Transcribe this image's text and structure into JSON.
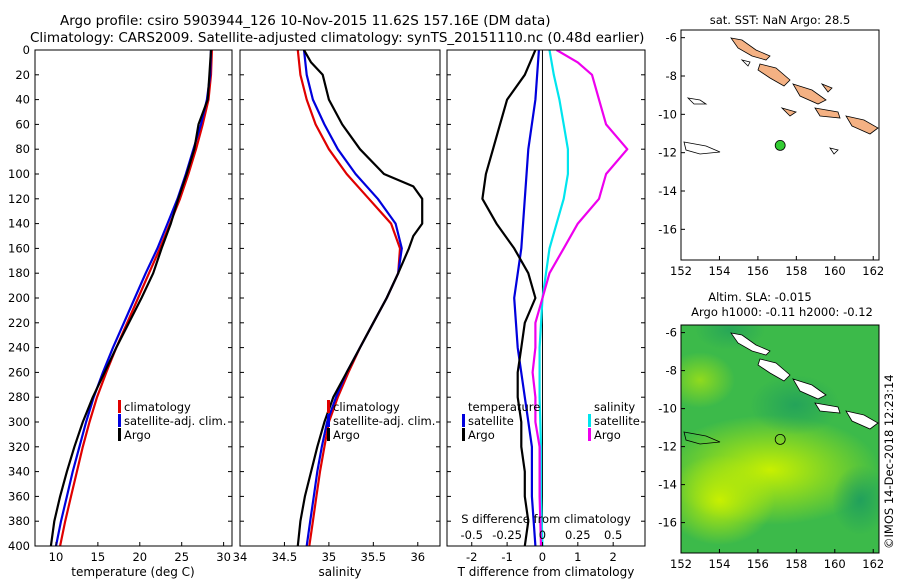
{
  "header": {
    "line1": "Argo profile: csiro 5903944_126 10-Nov-2015 11.62S 157.16E (DM data)",
    "line2": "Climatology: CARS2009. Satellite-adjusted climatology: synTS_20151110.nc (0.48d earlier)"
  },
  "colors": {
    "climatology": "#e00000",
    "satellite": "#0000dd",
    "argo": "#000000",
    "s_satellite": "#00e5ee",
    "s_climatology": "#ee00ee",
    "land": "#f4b183",
    "float": "#33cc33"
  },
  "depth_axis": {
    "min": 0,
    "max": 400,
    "ticks": [
      0,
      20,
      40,
      60,
      80,
      100,
      120,
      140,
      160,
      180,
      200,
      220,
      240,
      260,
      280,
      300,
      320,
      340,
      360,
      380,
      400
    ]
  },
  "chart_data": [
    {
      "id": "temperature",
      "type": "line",
      "xlabel": "temperature (deg C)",
      "xlim": [
        7.5,
        31
      ],
      "xticks": [
        10,
        15,
        20,
        25,
        30
      ],
      "legend": [
        "climatology",
        "satellite-adj. clim.",
        "Argo"
      ],
      "series": [
        {
          "name": "climatology",
          "color_key": "climatology",
          "points": [
            [
              28.6,
              0
            ],
            [
              28.5,
              20
            ],
            [
              28.2,
              40
            ],
            [
              27.5,
              60
            ],
            [
              26.7,
              80
            ],
            [
              25.8,
              100
            ],
            [
              24.8,
              120
            ],
            [
              23.6,
              140
            ],
            [
              22.4,
              160
            ],
            [
              21.1,
              180
            ],
            [
              19.8,
              200
            ],
            [
              18.5,
              220
            ],
            [
              17.2,
              240
            ],
            [
              16.0,
              260
            ],
            [
              14.9,
              280
            ],
            [
              14.0,
              300
            ],
            [
              13.2,
              320
            ],
            [
              12.5,
              340
            ],
            [
              11.8,
              360
            ],
            [
              11.1,
              380
            ],
            [
              10.5,
              400
            ]
          ]
        },
        {
          "name": "satellite-adj. clim.",
          "color_key": "satellite",
          "points": [
            [
              28.5,
              0
            ],
            [
              28.4,
              20
            ],
            [
              28.0,
              40
            ],
            [
              27.3,
              60
            ],
            [
              26.4,
              80
            ],
            [
              25.5,
              100
            ],
            [
              24.5,
              120
            ],
            [
              23.3,
              140
            ],
            [
              22.1,
              160
            ],
            [
              20.7,
              180
            ],
            [
              19.4,
              200
            ],
            [
              18.1,
              220
            ],
            [
              16.8,
              240
            ],
            [
              15.6,
              260
            ],
            [
              14.5,
              280
            ],
            [
              13.6,
              300
            ],
            [
              12.8,
              320
            ],
            [
              12.0,
              340
            ],
            [
              11.3,
              360
            ],
            [
              10.6,
              380
            ],
            [
              10.0,
              400
            ]
          ]
        },
        {
          "name": "Argo",
          "color_key": "argo",
          "points": [
            [
              28.5,
              0
            ],
            [
              28.3,
              20
            ],
            [
              28.1,
              40
            ],
            [
              27.0,
              60
            ],
            [
              26.5,
              80
            ],
            [
              25.6,
              100
            ],
            [
              24.6,
              120
            ],
            [
              23.7,
              140
            ],
            [
              22.6,
              160
            ],
            [
              21.6,
              180
            ],
            [
              20.2,
              200
            ],
            [
              18.7,
              220
            ],
            [
              17.2,
              240
            ],
            [
              15.8,
              260
            ],
            [
              14.4,
              280
            ],
            [
              13.2,
              300
            ],
            [
              12.2,
              320
            ],
            [
              11.3,
              340
            ],
            [
              10.5,
              360
            ],
            [
              9.8,
              380
            ],
            [
              9.4,
              400
            ]
          ]
        }
      ]
    },
    {
      "id": "salinity",
      "type": "line",
      "xlabel": "salinity",
      "xlim": [
        34,
        36.25
      ],
      "xticks": [
        34,
        34.5,
        35,
        35.5,
        36
      ],
      "xtick_labels": [
        "34",
        "34.5",
        "35",
        "35.5",
        "36"
      ],
      "legend": [
        "climatology",
        "satellite-adj. clim.",
        "Argo"
      ],
      "series": [
        {
          "name": "climatology",
          "color_key": "climatology",
          "points": [
            [
              34.65,
              0
            ],
            [
              34.68,
              20
            ],
            [
              34.75,
              40
            ],
            [
              34.85,
              60
            ],
            [
              35.0,
              80
            ],
            [
              35.2,
              100
            ],
            [
              35.45,
              120
            ],
            [
              35.7,
              140
            ],
            [
              35.8,
              160
            ],
            [
              35.78,
              180
            ],
            [
              35.65,
              200
            ],
            [
              35.5,
              220
            ],
            [
              35.35,
              240
            ],
            [
              35.22,
              260
            ],
            [
              35.1,
              280
            ],
            [
              35.0,
              300
            ],
            [
              34.95,
              320
            ],
            [
              34.9,
              340
            ],
            [
              34.86,
              360
            ],
            [
              34.82,
              380
            ],
            [
              34.78,
              400
            ]
          ]
        },
        {
          "name": "satellite-adj. clim.",
          "color_key": "satellite",
          "points": [
            [
              34.72,
              0
            ],
            [
              34.75,
              20
            ],
            [
              34.82,
              40
            ],
            [
              34.95,
              60
            ],
            [
              35.1,
              80
            ],
            [
              35.3,
              100
            ],
            [
              35.55,
              120
            ],
            [
              35.75,
              140
            ],
            [
              35.82,
              160
            ],
            [
              35.78,
              180
            ],
            [
              35.65,
              200
            ],
            [
              35.5,
              220
            ],
            [
              35.35,
              240
            ],
            [
              35.2,
              260
            ],
            [
              35.08,
              280
            ],
            [
              34.98,
              300
            ],
            [
              34.92,
              320
            ],
            [
              34.87,
              340
            ],
            [
              34.83,
              360
            ],
            [
              34.79,
              380
            ],
            [
              34.75,
              400
            ]
          ]
        },
        {
          "name": "Argo",
          "color_key": "argo",
          "points": [
            [
              34.72,
              0
            ],
            [
              34.8,
              10
            ],
            [
              34.93,
              20
            ],
            [
              35.0,
              40
            ],
            [
              35.15,
              60
            ],
            [
              35.35,
              80
            ],
            [
              35.62,
              100
            ],
            [
              35.95,
              110
            ],
            [
              36.05,
              120
            ],
            [
              36.05,
              140
            ],
            [
              35.95,
              150
            ],
            [
              35.9,
              160
            ],
            [
              35.78,
              180
            ],
            [
              35.65,
              200
            ],
            [
              35.5,
              220
            ],
            [
              35.35,
              240
            ],
            [
              35.2,
              260
            ],
            [
              35.05,
              280
            ],
            [
              34.95,
              300
            ],
            [
              34.87,
              320
            ],
            [
              34.8,
              340
            ],
            [
              34.73,
              360
            ],
            [
              34.68,
              380
            ],
            [
              34.65,
              400
            ]
          ]
        }
      ]
    },
    {
      "id": "difference",
      "type": "line",
      "xlabel": "T difference from climatology",
      "xlim": [
        -2.7,
        2.9
      ],
      "xticks": [
        -2,
        -1,
        0,
        1,
        2
      ],
      "top_label": "S difference from climatology",
      "top_ticks": [
        "-0.5",
        "-0.25",
        "0",
        "0.25",
        "0.5"
      ],
      "top_tick_values": [
        -0.5,
        -0.25,
        0,
        0.25,
        0.5
      ],
      "legend_left_title": "temperature",
      "legend_right_title": "salinity",
      "legend_left": [
        "satellite",
        "Argo"
      ],
      "legend_right": [
        "satellite",
        "Argo"
      ],
      "series": [
        {
          "name": "T satellite",
          "color_key": "satellite",
          "scale": "T",
          "points": [
            [
              -0.1,
              0
            ],
            [
              -0.2,
              40
            ],
            [
              -0.4,
              80
            ],
            [
              -0.5,
              120
            ],
            [
              -0.6,
              160
            ],
            [
              -0.8,
              200
            ],
            [
              -0.7,
              240
            ],
            [
              -0.5,
              280
            ],
            [
              -0.3,
              320
            ],
            [
              -0.3,
              360
            ],
            [
              -0.2,
              400
            ]
          ]
        },
        {
          "name": "T Argo",
          "color_key": "argo",
          "scale": "T",
          "points": [
            [
              -0.2,
              0
            ],
            [
              -0.5,
              20
            ],
            [
              -1.0,
              40
            ],
            [
              -1.2,
              60
            ],
            [
              -1.4,
              80
            ],
            [
              -1.6,
              100
            ],
            [
              -1.7,
              120
            ],
            [
              -1.3,
              140
            ],
            [
              -0.8,
              160
            ],
            [
              -0.4,
              180
            ],
            [
              -0.2,
              200
            ],
            [
              -0.5,
              220
            ],
            [
              -0.6,
              240
            ],
            [
              -0.7,
              260
            ],
            [
              -0.7,
              280
            ],
            [
              -0.6,
              300
            ],
            [
              -0.6,
              320
            ],
            [
              -0.5,
              340
            ],
            [
              -0.5,
              360
            ],
            [
              -0.4,
              380
            ],
            [
              -0.5,
              400
            ]
          ]
        },
        {
          "name": "S satellite",
          "color_key": "s_satellite",
          "scale": "S",
          "points": [
            [
              0.05,
              0
            ],
            [
              0.08,
              20
            ],
            [
              0.12,
              40
            ],
            [
              0.15,
              60
            ],
            [
              0.18,
              80
            ],
            [
              0.18,
              100
            ],
            [
              0.15,
              120
            ],
            [
              0.1,
              140
            ],
            [
              0.05,
              160
            ],
            [
              0.0,
              200
            ],
            [
              -0.02,
              240
            ],
            [
              -0.02,
              280
            ],
            [
              -0.01,
              320
            ],
            [
              -0.01,
              360
            ],
            [
              0.0,
              400
            ]
          ]
        },
        {
          "name": "S Argo",
          "color_key": "s_climatology",
          "scale": "S",
          "points": [
            [
              0.1,
              0
            ],
            [
              0.25,
              10
            ],
            [
              0.35,
              20
            ],
            [
              0.4,
              40
            ],
            [
              0.45,
              60
            ],
            [
              0.6,
              80
            ],
            [
              0.45,
              100
            ],
            [
              0.4,
              120
            ],
            [
              0.25,
              140
            ],
            [
              0.15,
              160
            ],
            [
              0.05,
              180
            ],
            [
              0.0,
              200
            ],
            [
              -0.05,
              220
            ],
            [
              -0.05,
              240
            ],
            [
              -0.07,
              260
            ],
            [
              -0.05,
              280
            ],
            [
              -0.05,
              300
            ],
            [
              -0.02,
              320
            ],
            [
              -0.02,
              360
            ],
            [
              -0.01,
              400
            ]
          ]
        }
      ]
    }
  ],
  "maps": [
    {
      "id": "sst-map",
      "title": "sat. SST: NaN Argo: 28.5",
      "lon_ticks": [
        152,
        154,
        156,
        158,
        160,
        162
      ],
      "lat_ticks": [
        -6,
        -8,
        -10,
        -12,
        -14,
        -16
      ],
      "lon_range": [
        152,
        162.3
      ],
      "lat_range": [
        -5.6,
        -17.6
      ],
      "float_lon": 157.16,
      "float_lat": -11.62
    },
    {
      "id": "sla-map",
      "title": "Altim. SLA: -0.015",
      "subtitle": "Argo h1000: -0.11 h2000: -0.12",
      "lon_ticks": [
        152,
        154,
        156,
        158,
        160,
        162
      ],
      "lat_ticks": [
        -6,
        -8,
        -10,
        -12,
        -14,
        -16
      ],
      "lon_range": [
        152,
        162.3
      ],
      "lat_range": [
        -5.6,
        -17.6
      ],
      "float_lon": 157.16,
      "float_lat": -11.62
    }
  ],
  "watermark": "©IMOS 14-Dec-2018 12:23:14"
}
